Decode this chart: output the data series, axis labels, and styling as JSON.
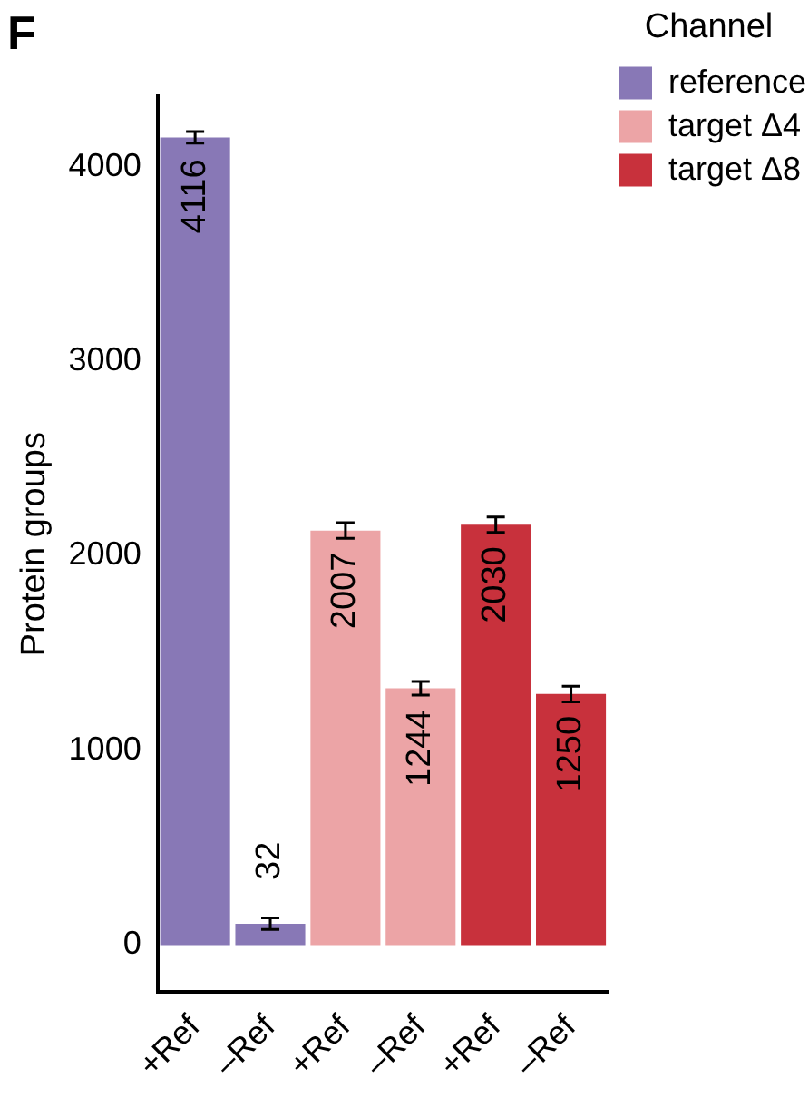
{
  "chart_data": {
    "type": "bar",
    "title": "F",
    "ylabel": "Protein groups",
    "legend_title": "Channel",
    "categories": [
      "+Ref",
      "–Ref",
      "+Ref",
      "–Ref",
      "+Ref",
      "–Ref"
    ],
    "series": [
      {
        "name": "reference",
        "color": "#8878b6",
        "values": [
          4150,
          110,
          null,
          null,
          null,
          null
        ],
        "errors": [
          30,
          30,
          null,
          null,
          null,
          null
        ]
      },
      {
        "name": "target Δ4",
        "color": "#eca4a6",
        "values": [
          null,
          null,
          2130,
          1320,
          null,
          null
        ],
        "errors": [
          null,
          null,
          40,
          35,
          null,
          null
        ]
      },
      {
        "name": "target Δ8",
        "color": "#c8313c",
        "values": [
          null,
          null,
          null,
          null,
          2160,
          1290
        ],
        "errors": [
          null,
          null,
          null,
          null,
          40,
          40
        ]
      }
    ],
    "annotations": [
      "4116",
      "32",
      "2007",
      "1244",
      "2030",
      "1250"
    ],
    "ylim": [
      -240,
      4360
    ],
    "yticks": [
      0,
      1000,
      2000,
      3000,
      4000
    ],
    "grid": false,
    "legend": "right"
  }
}
